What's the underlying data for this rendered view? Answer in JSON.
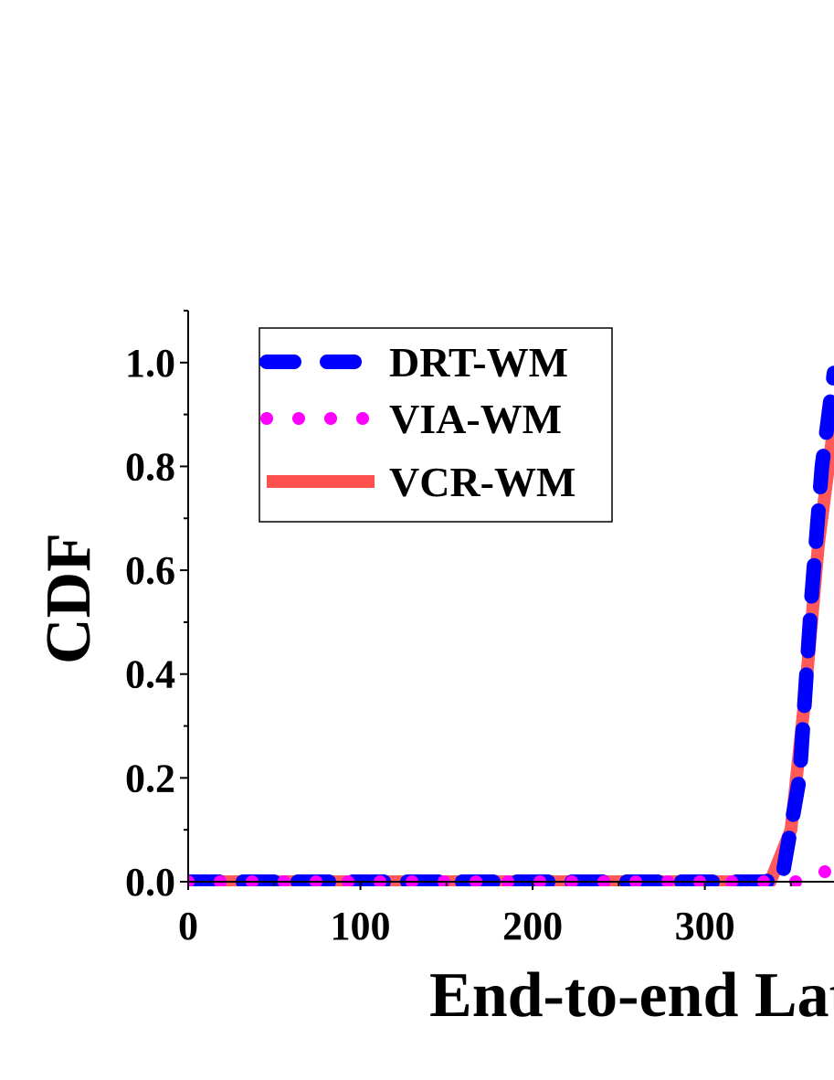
{
  "chart_data": {
    "type": "line",
    "title": "",
    "xlabel": "End-to-end Latency",
    "ylabel": "CDF",
    "xlim": [
      0,
      375
    ],
    "ylim": [
      0,
      1.1
    ],
    "x_ticks": [
      {
        "value": 0,
        "label": "0"
      },
      {
        "value": 100,
        "label": "100"
      },
      {
        "value": 200,
        "label": "200"
      },
      {
        "value": 300,
        "label": "300"
      }
    ],
    "y_ticks": [
      {
        "value": 0.0,
        "label": "0.0"
      },
      {
        "value": 0.2,
        "label": "0.2"
      },
      {
        "value": 0.4,
        "label": "0.4"
      },
      {
        "value": 0.6,
        "label": "0.6"
      },
      {
        "value": 0.8,
        "label": "0.8"
      },
      {
        "value": 1.0,
        "label": "1.0"
      }
    ],
    "legend_position": "top-left",
    "series": [
      {
        "name": "DRT-WM",
        "color": "#0000ff",
        "style": "dashed",
        "points": [
          [
            0,
            0
          ],
          [
            335,
            0
          ],
          [
            345,
            0.01
          ],
          [
            355,
            0.2
          ],
          [
            362,
            0.55
          ],
          [
            368,
            0.8
          ],
          [
            375,
            0.98
          ]
        ]
      },
      {
        "name": "VIA-WM",
        "color": "#ff00ff",
        "style": "dotted",
        "points": [
          [
            0,
            0
          ],
          [
            360,
            0
          ],
          [
            375,
            0.03
          ]
        ]
      },
      {
        "name": "VCR-WM",
        "color": "#ff5050",
        "style": "solid",
        "points": [
          [
            0,
            0
          ],
          [
            338,
            0
          ],
          [
            350,
            0.1
          ],
          [
            358,
            0.35
          ],
          [
            366,
            0.65
          ],
          [
            375,
            0.88
          ]
        ]
      }
    ]
  }
}
